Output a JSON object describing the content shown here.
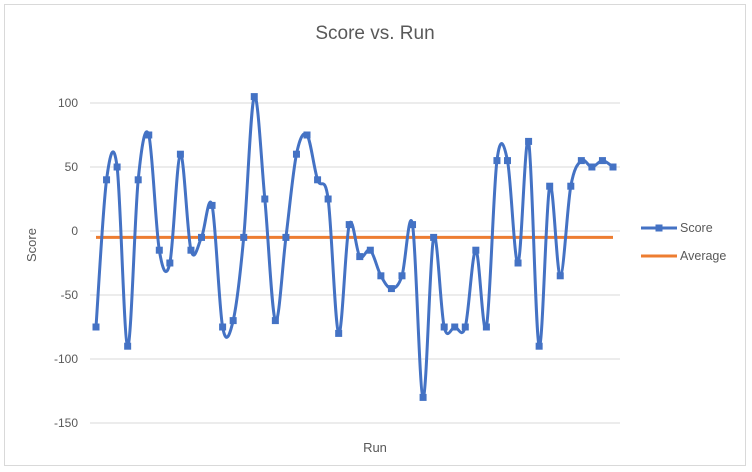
{
  "chart_data": {
    "type": "line",
    "title": "Score vs. Run",
    "xlabel": "Run",
    "ylabel": "Score",
    "ylim": [
      -150,
      100
    ],
    "y_ticks": [
      100,
      50,
      0,
      -50,
      -100,
      -150
    ],
    "grid": true,
    "legend_position": "right",
    "series": [
      {
        "name": "Score",
        "color": "#4472c4",
        "marker": "square",
        "smooth": true,
        "values": [
          -75,
          40,
          50,
          -90,
          40,
          75,
          -15,
          -25,
          60,
          -15,
          -5,
          20,
          -75,
          -70,
          -5,
          105,
          25,
          -70,
          -5,
          60,
          75,
          40,
          25,
          -80,
          5,
          -20,
          -15,
          -35,
          -45,
          -35,
          5,
          -130,
          -5,
          -75,
          -75,
          -75,
          -15,
          -75,
          55,
          55,
          -25,
          70,
          -90,
          35,
          -35,
          35,
          55,
          50,
          55,
          50
        ]
      },
      {
        "name": "Average",
        "color": "#ed7d31",
        "marker": "none",
        "value": -5
      }
    ]
  }
}
